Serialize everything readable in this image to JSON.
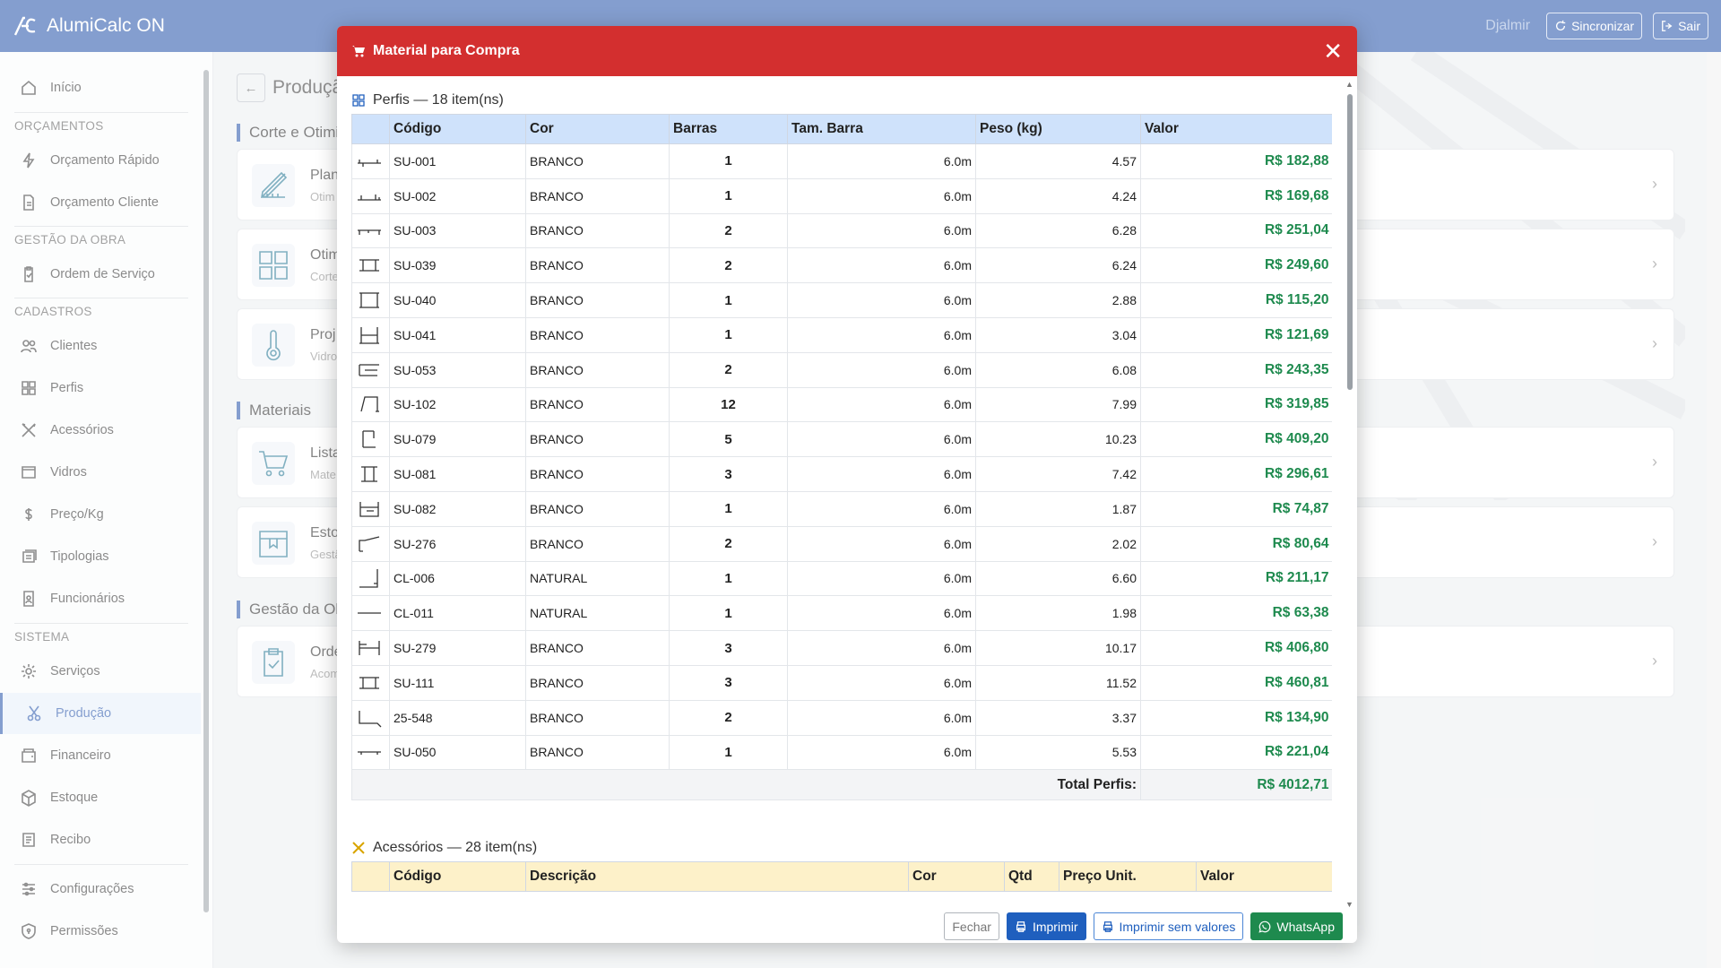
{
  "app": {
    "title": "AlumiCalc ON",
    "user": "Djalmir",
    "sync_label": "Sincronizar",
    "logout_label": "Sair"
  },
  "sidebar": {
    "home": "Início",
    "sections": {
      "orcamentos": "ORÇAMENTOS",
      "gestao": "GESTÃO DA OBRA",
      "cadastros": "CADASTROS",
      "sistema": "SISTEMA"
    },
    "items": {
      "orc_rapido": "Orçamento Rápido",
      "orc_cliente": "Orçamento Cliente",
      "ordem": "Ordem de Serviço",
      "clientes": "Clientes",
      "perfis": "Perfis",
      "acessorios": "Acessórios",
      "vidros": "Vidros",
      "preco": "Preço/Kg",
      "tipologias": "Tipologias",
      "funcionarios": "Funcionários",
      "servicos": "Serviços",
      "producao": "Produção",
      "financeiro": "Financeiro",
      "estoque": "Estoque",
      "recibo": "Recibo",
      "config": "Configurações",
      "permissoes": "Permissões"
    }
  },
  "page": {
    "title": "Produçã",
    "sec1": "Corte e Otimiz",
    "sec2": "Materiais",
    "sec3": "Gestão da Ob",
    "cards": [
      {
        "t1": "Plan",
        "t2": "Otim",
        "icon": "ruler-pencil-icon"
      },
      {
        "t1": "Otim",
        "t2": "Corte",
        "icon": "grid-icon"
      },
      {
        "t1": "Proj",
        "t2": "Vidro",
        "icon": "thermometer-icon"
      },
      {
        "t1": "Lista",
        "t2": "Mate",
        "icon": "cart-icon"
      },
      {
        "t1": "Esto",
        "t2": "Gestã",
        "icon": "box-icon"
      },
      {
        "t1": "Orde",
        "t2": "Acom",
        "icon": "clipboard-icon"
      }
    ]
  },
  "modal": {
    "title": "Material para Compra",
    "perfis_title": "Perfis — 18 item(ns)",
    "perfis_cols": [
      "Código",
      "Cor",
      "Barras",
      "Tam. Barra",
      "Peso (kg)",
      "Valor"
    ],
    "perfis_rows": [
      [
        "SU-001",
        "BRANCO",
        "1",
        "6.0m",
        "4.57",
        "R$ 182,88"
      ],
      [
        "SU-002",
        "BRANCO",
        "1",
        "6.0m",
        "4.24",
        "R$ 169,68"
      ],
      [
        "SU-003",
        "BRANCO",
        "2",
        "6.0m",
        "6.28",
        "R$ 251,04"
      ],
      [
        "SU-039",
        "BRANCO",
        "2",
        "6.0m",
        "6.24",
        "R$ 249,60"
      ],
      [
        "SU-040",
        "BRANCO",
        "1",
        "6.0m",
        "2.88",
        "R$ 115,20"
      ],
      [
        "SU-041",
        "BRANCO",
        "1",
        "6.0m",
        "3.04",
        "R$ 121,69"
      ],
      [
        "SU-053",
        "BRANCO",
        "2",
        "6.0m",
        "6.08",
        "R$ 243,35"
      ],
      [
        "SU-102",
        "BRANCO",
        "12",
        "6.0m",
        "7.99",
        "R$ 319,85"
      ],
      [
        "SU-079",
        "BRANCO",
        "5",
        "6.0m",
        "10.23",
        "R$ 409,20"
      ],
      [
        "SU-081",
        "BRANCO",
        "3",
        "6.0m",
        "7.42",
        "R$ 296,61"
      ],
      [
        "SU-082",
        "BRANCO",
        "1",
        "6.0m",
        "1.87",
        "R$ 74,87"
      ],
      [
        "SU-276",
        "BRANCO",
        "2",
        "6.0m",
        "2.02",
        "R$ 80,64"
      ],
      [
        "CL-006",
        "NATURAL",
        "1",
        "6.0m",
        "6.60",
        "R$ 211,17"
      ],
      [
        "CL-011",
        "NATURAL",
        "1",
        "6.0m",
        "1.98",
        "R$ 63,38"
      ],
      [
        "SU-279",
        "BRANCO",
        "3",
        "6.0m",
        "10.17",
        "R$ 406,80"
      ],
      [
        "SU-111",
        "BRANCO",
        "3",
        "6.0m",
        "11.52",
        "R$ 460,81"
      ],
      [
        "25-548",
        "BRANCO",
        "2",
        "6.0m",
        "3.37",
        "R$ 134,90"
      ],
      [
        "SU-050",
        "BRANCO",
        "1",
        "6.0m",
        "5.53",
        "R$ 221,04"
      ]
    ],
    "total_label": "Total Perfis:",
    "total_value": "R$ 4012,71",
    "acess_title": "Acessórios — 28 item(ns)",
    "acess_cols": [
      "Código",
      "Descrição",
      "Cor",
      "Qtd",
      "Preço Unit.",
      "Valor"
    ],
    "btn_close": "Fechar",
    "btn_print": "Imprimir",
    "btn_print_nv": "Imprimir sem valores",
    "btn_wa": "WhatsApp"
  },
  "colors": {
    "primary": "#1f4fa8",
    "danger": "#d32f2f",
    "success": "#1e8a4e"
  }
}
